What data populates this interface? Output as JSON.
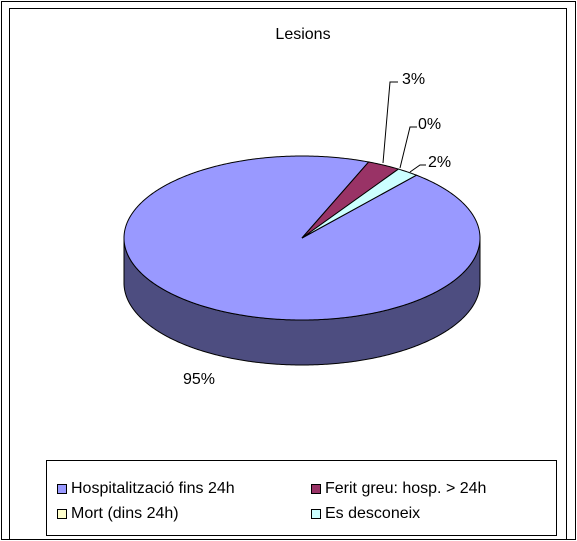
{
  "chart_data": {
    "type": "pie",
    "title": "Lesions",
    "categories": [
      "Hospitalització fins 24h",
      "Ferit greu: hosp. > 24h",
      "Mort (dins 24h)",
      "Es desconeix"
    ],
    "values": [
      95,
      3,
      0,
      2
    ],
    "value_labels": [
      "95%",
      "3%",
      "0%",
      "2%"
    ],
    "colors": [
      "#9999ff",
      "#993366",
      "#ffffcc",
      "#ccffff"
    ],
    "legend": "bottom"
  }
}
